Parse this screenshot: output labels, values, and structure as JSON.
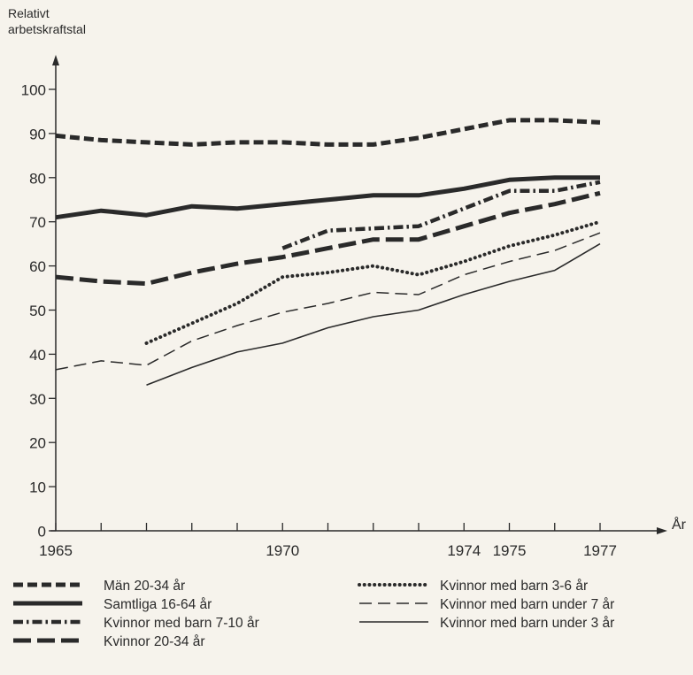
{
  "chart_data": {
    "type": "line",
    "title": "",
    "ylabel_lines": [
      "Relativt",
      "arbetskraftstal"
    ],
    "xlabel": "År",
    "ylim": [
      0,
      100
    ],
    "yticks": [
      0,
      10,
      20,
      30,
      40,
      50,
      60,
      70,
      80,
      90,
      100
    ],
    "xlim": [
      1965,
      1977.5
    ],
    "xticks": [
      1965,
      1966,
      1967,
      1968,
      1969,
      1970,
      1971,
      1972,
      1973,
      1974,
      1975,
      1976,
      1977
    ],
    "xtick_labels": [
      {
        "x": 1965,
        "label": "1965"
      },
      {
        "x": 1970,
        "label": "1970"
      },
      {
        "x": 1974,
        "label": "1974"
      },
      {
        "x": 1975,
        "label": "1975"
      },
      {
        "x": 1977,
        "label": "1977"
      }
    ],
    "grid": false,
    "legend_position": "bottom",
    "series": [
      {
        "name": "Män 20‐34 år",
        "style": "dashed-thick",
        "points": [
          [
            1965,
            89.5
          ],
          [
            1966,
            88.5
          ],
          [
            1967,
            88
          ],
          [
            1968,
            87.5
          ],
          [
            1969,
            88
          ],
          [
            1970,
            88
          ],
          [
            1971,
            87.5
          ],
          [
            1972,
            87.5
          ],
          [
            1973,
            89
          ],
          [
            1974,
            91
          ],
          [
            1975,
            93
          ],
          [
            1976,
            93
          ],
          [
            1977,
            92.5
          ]
        ]
      },
      {
        "name": "Samtliga 16‐64 år",
        "style": "solid-thick",
        "points": [
          [
            1965,
            71
          ],
          [
            1966,
            72.5
          ],
          [
            1967,
            71.5
          ],
          [
            1968,
            73.5
          ],
          [
            1969,
            73
          ],
          [
            1970,
            74
          ],
          [
            1971,
            75
          ],
          [
            1972,
            76
          ],
          [
            1973,
            76
          ],
          [
            1974,
            77.5
          ],
          [
            1975,
            79.5
          ],
          [
            1976,
            80
          ],
          [
            1977,
            80
          ]
        ]
      },
      {
        "name": "Kvinnor med barn 7‐10 år",
        "style": "dash-dot-thick",
        "points": [
          [
            1970,
            64
          ],
          [
            1971,
            68
          ],
          [
            1972,
            68.5
          ],
          [
            1973,
            69
          ],
          [
            1974,
            73
          ],
          [
            1975,
            77
          ],
          [
            1976,
            77
          ],
          [
            1977,
            79
          ]
        ]
      },
      {
        "name": "Kvinnor 20‐34 år",
        "style": "long-dash-thick",
        "points": [
          [
            1965,
            57.5
          ],
          [
            1966,
            56.5
          ],
          [
            1967,
            56
          ],
          [
            1968,
            58.5
          ],
          [
            1969,
            60.5
          ],
          [
            1970,
            62
          ],
          [
            1971,
            64
          ],
          [
            1972,
            66
          ],
          [
            1973,
            66
          ],
          [
            1974,
            69
          ],
          [
            1975,
            72
          ],
          [
            1976,
            74
          ],
          [
            1977,
            76.5
          ]
        ]
      },
      {
        "name": "Kvinnor med barn 3‐6 år",
        "style": "dotted",
        "points": [
          [
            1967,
            42.5
          ],
          [
            1968,
            47
          ],
          [
            1969,
            51.5
          ],
          [
            1970,
            57.5
          ],
          [
            1971,
            58.5
          ],
          [
            1972,
            60
          ],
          [
            1973,
            58
          ],
          [
            1974,
            61
          ],
          [
            1975,
            64.5
          ],
          [
            1976,
            67
          ],
          [
            1977,
            70
          ]
        ]
      },
      {
        "name": "Kvinnor med barn under 7 år",
        "style": "dashed-thin",
        "points": [
          [
            1965,
            36.5
          ],
          [
            1966,
            38.5
          ],
          [
            1967,
            37.5
          ],
          [
            1968,
            43
          ],
          [
            1969,
            46.5
          ],
          [
            1970,
            49.5
          ],
          [
            1971,
            51.5
          ],
          [
            1972,
            54
          ],
          [
            1973,
            53.5
          ],
          [
            1974,
            58
          ],
          [
            1975,
            61
          ],
          [
            1976,
            63.5
          ],
          [
            1977,
            67.5
          ]
        ]
      },
      {
        "name": "Kvinnor med barn under 3 år",
        "style": "solid-thin",
        "points": [
          [
            1967,
            33
          ],
          [
            1968,
            37
          ],
          [
            1969,
            40.5
          ],
          [
            1970,
            42.5
          ],
          [
            1971,
            46
          ],
          [
            1972,
            48.5
          ],
          [
            1973,
            50
          ],
          [
            1974,
            53.5
          ],
          [
            1975,
            56.5
          ],
          [
            1976,
            59
          ],
          [
            1977,
            65
          ]
        ]
      }
    ]
  }
}
